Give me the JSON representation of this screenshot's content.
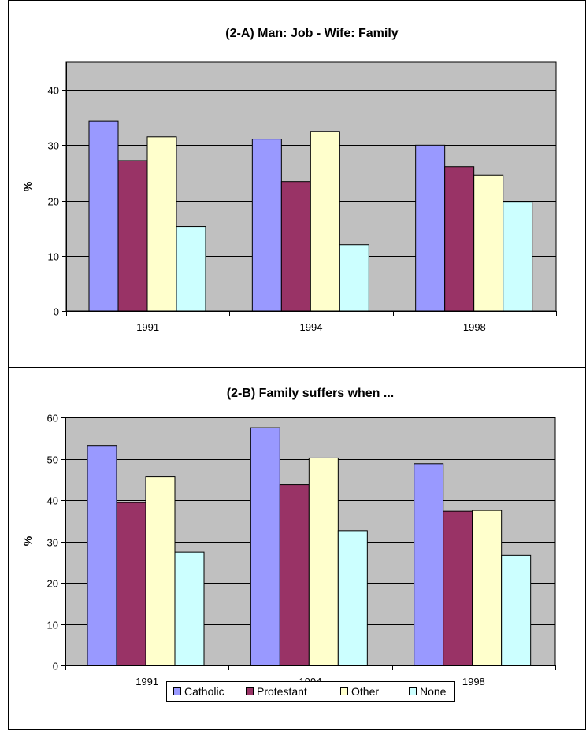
{
  "chart_data": [
    {
      "type": "bar",
      "title": "(2-A) Man: Job - Wife: Family",
      "xlabel": "",
      "ylabel": "%",
      "ylim": [
        0,
        45
      ],
      "yticks": [
        0,
        10,
        20,
        30,
        40
      ],
      "categories": [
        "1991",
        "1994",
        "1998"
      ],
      "grid": true,
      "series": [
        {
          "name": "Catholic",
          "color": "#9999ff",
          "values": [
            34.3,
            31.1,
            30.0
          ]
        },
        {
          "name": "Protestant",
          "color": "#993366",
          "values": [
            27.2,
            23.4,
            26.1
          ]
        },
        {
          "name": "Other",
          "color": "#ffffcc",
          "values": [
            31.5,
            32.5,
            24.6
          ]
        },
        {
          "name": "None",
          "color": "#ccffff",
          "values": [
            15.3,
            12.0,
            19.7
          ]
        }
      ]
    },
    {
      "type": "bar",
      "title": "(2-B) Family suffers when ...",
      "xlabel": "",
      "ylabel": "%",
      "ylim": [
        0,
        60
      ],
      "yticks": [
        0,
        10,
        20,
        30,
        40,
        50,
        60
      ],
      "categories": [
        "1991",
        "1994",
        "1998"
      ],
      "grid": true,
      "legend_position": "bottom",
      "series": [
        {
          "name": "Catholic",
          "color": "#9999ff",
          "values": [
            53.2,
            57.5,
            48.8
          ]
        },
        {
          "name": "Protestant",
          "color": "#993366",
          "values": [
            39.4,
            43.7,
            37.3
          ]
        },
        {
          "name": "Other",
          "color": "#ffffcc",
          "values": [
            45.6,
            50.2,
            37.5
          ]
        },
        {
          "name": "None",
          "color": "#ccffff",
          "values": [
            27.4,
            32.6,
            26.6
          ]
        }
      ]
    }
  ],
  "legend": {
    "items": [
      {
        "label": "Catholic",
        "color": "#9999ff"
      },
      {
        "label": "Protestant",
        "color": "#993366"
      },
      {
        "label": "Other",
        "color": "#ffffcc"
      },
      {
        "label": "None",
        "color": "#ccffff"
      }
    ]
  },
  "colors": {
    "plot_background": "#c0c0c0",
    "gridline": "#000000",
    "border": "#000000"
  }
}
